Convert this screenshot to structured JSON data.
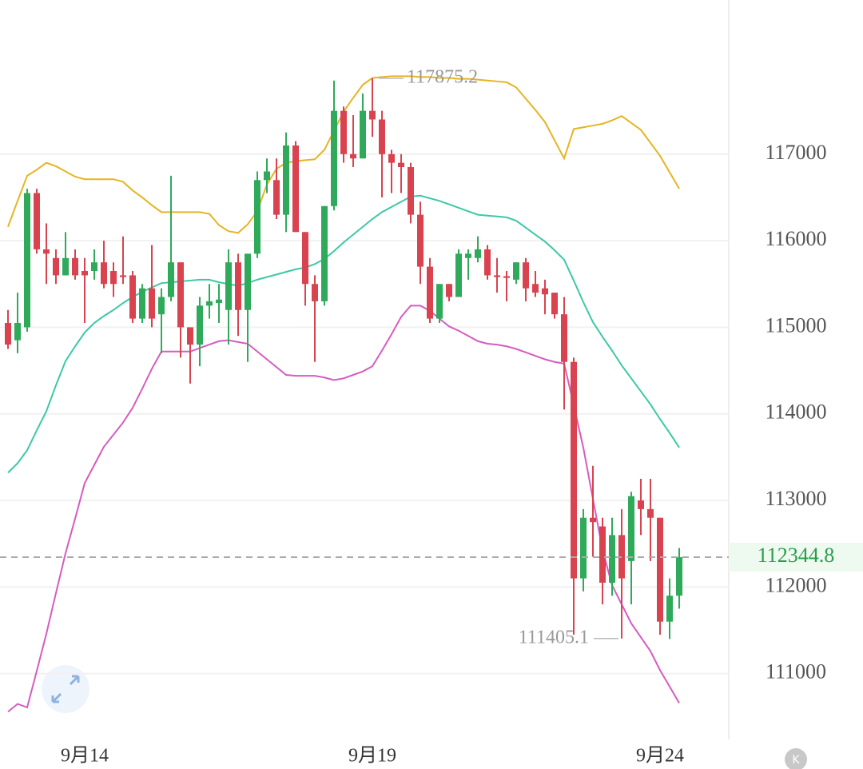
{
  "chart_data": {
    "type": "candlestick",
    "categories": [
      null,
      null,
      null,
      null,
      null,
      null,
      null,
      null,
      "9月14",
      null,
      null,
      null,
      null,
      null,
      null,
      null,
      null,
      null,
      null,
      null,
      null,
      null,
      null,
      null,
      null,
      null,
      null,
      null,
      null,
      null,
      null,
      null,
      null,
      null,
      null,
      null,
      null,
      null,
      "9月19",
      null,
      null,
      null,
      null,
      null,
      null,
      null,
      null,
      null,
      null,
      null,
      null,
      null,
      null,
      null,
      null,
      null,
      null,
      null,
      null,
      null,
      null,
      null,
      null,
      null,
      null,
      null,
      null,
      null,
      "9月24",
      null,
      null
    ],
    "open": [
      115050,
      114850,
      115000,
      116550,
      115900,
      115800,
      115600,
      115800,
      115650,
      115650,
      115750,
      115650,
      115600,
      115600,
      115100,
      115450,
      115150,
      115350,
      115750,
      115000,
      114800,
      115250,
      115280,
      115200,
      115750,
      115200,
      115850,
      116700,
      116700,
      116300,
      117100,
      116100,
      115500,
      115300,
      116400,
      117500,
      117000,
      116950,
      117500,
      117400,
      117000,
      116900,
      116850,
      116300,
      115700,
      115100,
      115500,
      115350,
      115800,
      115800,
      115900,
      115600,
      115590,
      115550,
      115750,
      115500,
      115450,
      115400,
      115150,
      114600,
      112100,
      112800,
      112700,
      112050,
      112600,
      112300,
      113000,
      112900,
      112800,
      111600,
      111900
    ],
    "high": [
      115200,
      115400,
      116600,
      116600,
      116200,
      115900,
      116100,
      115900,
      115800,
      115900,
      116000,
      115750,
      116050,
      115650,
      115500,
      115950,
      115450,
      116750,
      115750,
      115000,
      115350,
      115500,
      115500,
      115900,
      115850,
      115850,
      116800,
      116950,
      116950,
      117250,
      117150,
      116100,
      115600,
      116400,
      117850,
      117550,
      117450,
      117700,
      117875.2,
      117500,
      117050,
      117000,
      116900,
      116450,
      115800,
      115500,
      115500,
      115900,
      115900,
      116050,
      115950,
      115800,
      115650,
      115750,
      115800,
      115650,
      115550,
      115400,
      115350,
      114650,
      112900,
      113400,
      112800,
      112800,
      112900,
      113100,
      113250,
      113250,
      112800,
      112100,
      112450
    ],
    "low": [
      114750,
      114700,
      114950,
      115850,
      115500,
      115500,
      115600,
      115550,
      115050,
      115550,
      115450,
      115350,
      115500,
      115050,
      115050,
      115000,
      114700,
      115300,
      114650,
      114350,
      114550,
      115100,
      115050,
      114800,
      114900,
      114600,
      115800,
      116550,
      116250,
      116100,
      116100,
      115250,
      114600,
      115250,
      116350,
      116900,
      116850,
      116950,
      117200,
      116500,
      116550,
      116550,
      116200,
      115500,
      115050,
      115050,
      115300,
      115350,
      115550,
      115750,
      115550,
      115400,
      115300,
      115500,
      115300,
      115350,
      115150,
      115100,
      114050,
      111450,
      111950,
      112350,
      111800,
      111900,
      111405.1,
      111800,
      112600,
      112300,
      111450,
      111400,
      111750
    ],
    "close": [
      114800,
      115050,
      116550,
      115900,
      115850,
      115600,
      115800,
      115600,
      115600,
      115750,
      115500,
      115500,
      115580,
      115100,
      115450,
      115100,
      115350,
      115750,
      115000,
      114800,
      115250,
      115300,
      115320,
      115750,
      115200,
      115850,
      116700,
      116800,
      116300,
      117100,
      116100,
      115500,
      115300,
      116400,
      117500,
      117000,
      116950,
      117500,
      117400,
      117000,
      116900,
      116850,
      116300,
      115700,
      115100,
      115500,
      115350,
      115850,
      115850,
      115900,
      115600,
      115580,
      115570,
      115750,
      115450,
      115400,
      115380,
      115150,
      114600,
      112100,
      112800,
      112750,
      112050,
      112600,
      112100,
      113050,
      112900,
      112800,
      111600,
      111900,
      112344.8
    ],
    "up_color": "#2eaa5a",
    "down_color": "#d9434f",
    "bands": [
      {
        "color": "#e6b422",
        "values": [
          116160,
          116460,
          116750,
          116820,
          116900,
          116860,
          116800,
          116740,
          116710,
          116710,
          116710,
          116710,
          116680,
          116580,
          116500,
          116410,
          116330,
          116330,
          116330,
          116330,
          116330,
          116310,
          116180,
          116110,
          116090,
          116190,
          116340,
          116650,
          116830,
          116900,
          116920,
          116930,
          116940,
          117050,
          117270,
          117490,
          117650,
          117800,
          117880,
          117890,
          117900,
          117900,
          117900,
          117890,
          117890,
          117880,
          117880,
          117870,
          117870,
          117860,
          117850,
          117840,
          117830,
          117770,
          117640,
          117510,
          117370,
          117160,
          116950,
          117290,
          117310,
          117330,
          117350,
          117390,
          117440,
          117360,
          117280,
          117130,
          116980,
          116790,
          116600
        ]
      },
      {
        "color": "#3cc8a6",
        "values": [
          113320,
          113430,
          113580,
          113810,
          114030,
          114330,
          114610,
          114780,
          114940,
          115050,
          115130,
          115200,
          115280,
          115350,
          115410,
          115460,
          115510,
          115520,
          115530,
          115540,
          115550,
          115550,
          115520,
          115500,
          115480,
          115510,
          115550,
          115580,
          115610,
          115640,
          115670,
          115690,
          115730,
          115790,
          115880,
          115980,
          116070,
          116160,
          116250,
          116330,
          116390,
          116450,
          116510,
          116520,
          116490,
          116460,
          116420,
          116380,
          116340,
          116300,
          116290,
          116280,
          116270,
          116230,
          116150,
          116070,
          115990,
          115890,
          115780,
          115540,
          115290,
          115060,
          114890,
          114730,
          114560,
          114410,
          114260,
          114110,
          113940,
          113780,
          113610
        ]
      },
      {
        "color": "#d55cc0",
        "values": [
          110560,
          110650,
          110610,
          111030,
          111460,
          111930,
          112390,
          112790,
          113200,
          113410,
          113620,
          113760,
          113900,
          114070,
          114290,
          114520,
          114720,
          114720,
          114720,
          114720,
          114760,
          114800,
          114840,
          114850,
          114830,
          114810,
          114720,
          114630,
          114540,
          114450,
          114440,
          114440,
          114440,
          114420,
          114390,
          114410,
          114450,
          114490,
          114550,
          114730,
          114920,
          115120,
          115250,
          115250,
          115190,
          115100,
          115010,
          114960,
          114900,
          114840,
          114810,
          114800,
          114780,
          114750,
          114710,
          114670,
          114630,
          114600,
          114580,
          114100,
          113610,
          113020,
          112430,
          112020,
          111800,
          111580,
          111420,
          111260,
          111040,
          110850,
          110660
        ]
      }
    ],
    "ylim": [
      110240,
      118780
    ],
    "yticks": [
      111000,
      112000,
      113000,
      114000,
      115000,
      116000,
      117000
    ],
    "grid": true,
    "max_label": 117875.2,
    "min_label": 111405.1,
    "last_price": 112344.8
  }
}
